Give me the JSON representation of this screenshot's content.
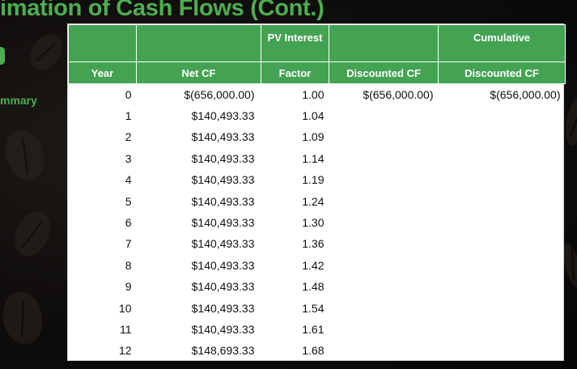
{
  "title": "imation of Cash Flows (Cont.)",
  "side_label": "mmary",
  "colors": {
    "accent": "#43a352",
    "title": "#4caf50",
    "background": "#0f0d0c"
  },
  "table": {
    "header_top": [
      "",
      "",
      "PV Interest",
      "",
      "Cumulative"
    ],
    "header_bottom": [
      "Year",
      "Net CF",
      "Factor",
      "Discounted CF",
      "Discounted CF"
    ],
    "rows": [
      [
        "0",
        "$(656,000.00)",
        "1.00",
        "$(656,000.00)",
        "$(656,000.00)"
      ],
      [
        "1",
        "$140,493.33",
        "1.04",
        "",
        ""
      ],
      [
        "2",
        "$140,493.33",
        "1.09",
        "",
        ""
      ],
      [
        "3",
        "$140,493.33",
        "1.14",
        "",
        ""
      ],
      [
        "4",
        "$140,493.33",
        "1.19",
        "",
        ""
      ],
      [
        "5",
        "$140,493.33",
        "1.24",
        "",
        ""
      ],
      [
        "6",
        "$140,493.33",
        "1.30",
        "",
        ""
      ],
      [
        "7",
        "$140,493.33",
        "1.36",
        "",
        ""
      ],
      [
        "8",
        "$140,493.33",
        "1.42",
        "",
        ""
      ],
      [
        "9",
        "$140,493.33",
        "1.48",
        "",
        ""
      ],
      [
        "10",
        "$140,493.33",
        "1.54",
        "",
        ""
      ],
      [
        "11",
        "$140,493.33",
        "1.61",
        "",
        ""
      ],
      [
        "12",
        "$148,693.33",
        "1.68",
        "",
        ""
      ]
    ]
  }
}
